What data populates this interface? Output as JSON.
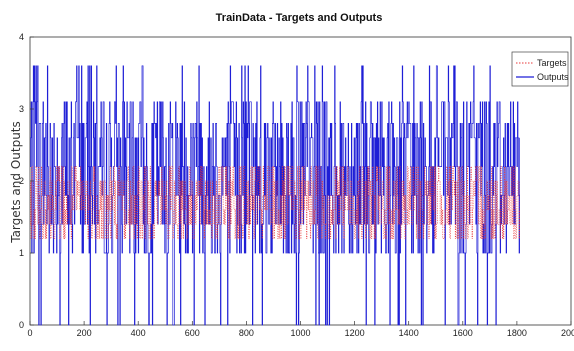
{
  "chart_data": {
    "type": "line",
    "title": "TrainData - Targets and Outputs",
    "xlabel": "",
    "ylabel": "Targets and Outputs",
    "xlim": [
      0,
      2000
    ],
    "ylim": [
      0,
      4
    ],
    "xticks": [
      0,
      200,
      400,
      600,
      800,
      1000,
      1200,
      1400,
      1600,
      1800,
      2000
    ],
    "yticks": [
      0,
      1,
      2,
      3,
      4
    ],
    "grid": false,
    "legend_position": "top-right",
    "sample_count": 1810,
    "series": [
      {
        "name": "Targets",
        "color": "#e8383a",
        "style": "dotted",
        "level_values": [
          1.2,
          1.4,
          1.6,
          1.8,
          2.0,
          2.2
        ],
        "segments": [
          {
            "x_start": 0,
            "x_end": 1810,
            "y_min": 1.2,
            "y_max": 2.3
          }
        ]
      },
      {
        "name": "Outputs",
        "color": "#1f1fd6",
        "style": "solid",
        "level_values": [
          0,
          1.0,
          1.4,
          1.8,
          2.2,
          2.6,
          2.8,
          3.1,
          3.6
        ],
        "segments": [
          {
            "x_start": 0,
            "x_end": 1810,
            "y_min": 0,
            "y_max": 3.6
          }
        ]
      }
    ]
  }
}
